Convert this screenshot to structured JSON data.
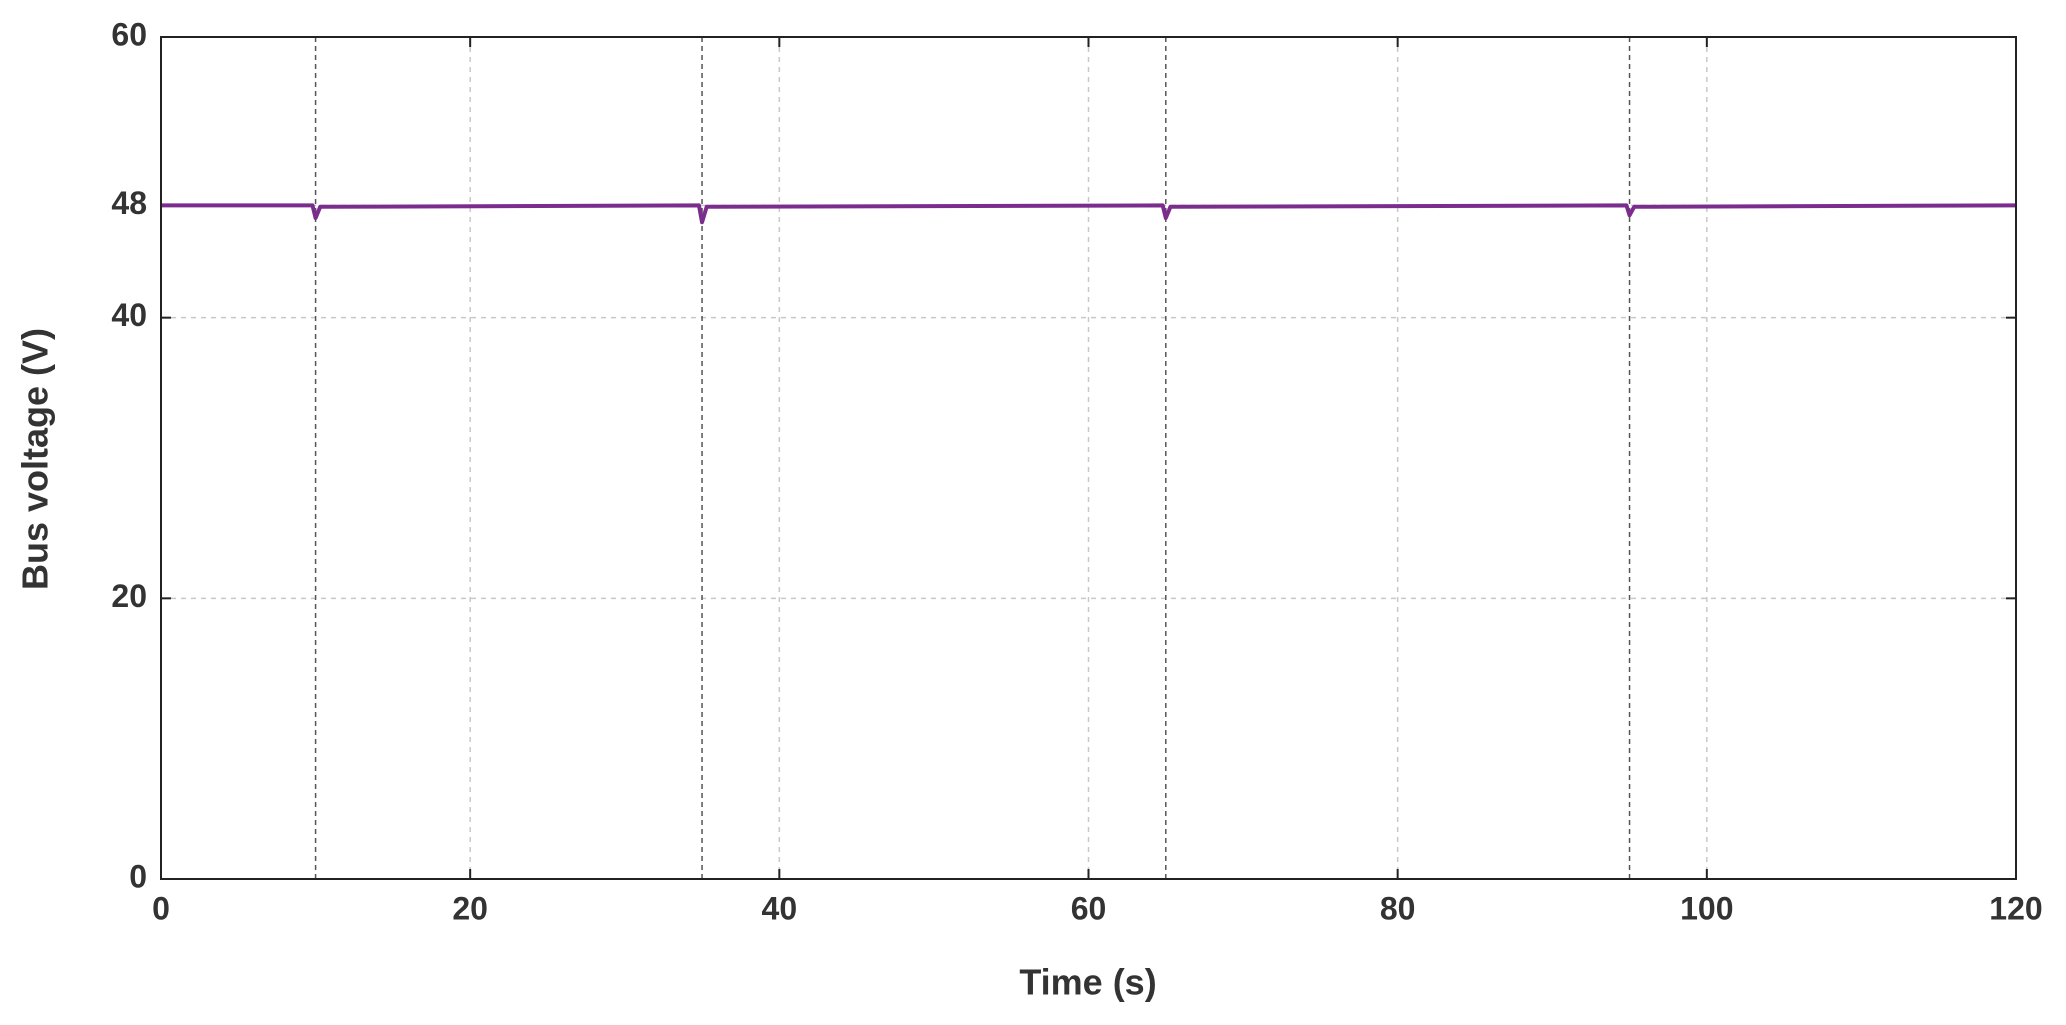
{
  "chart_data": {
    "type": "line",
    "xlabel": "Time (s)",
    "ylabel": "Bus voltage (V)",
    "x": [
      0,
      9.8,
      10,
      10.3,
      34.8,
      35,
      35.3,
      64.8,
      65,
      65.3,
      94.8,
      95,
      95.3,
      120
    ],
    "series": [
      {
        "name": "Bus voltage",
        "color": "#7b2d8e",
        "values": [
          48,
          48,
          47.1,
          47.9,
          48,
          46.8,
          47.9,
          48,
          47.1,
          47.9,
          48,
          47.3,
          47.9,
          48
        ]
      }
    ],
    "xlim": [
      0,
      120
    ],
    "xticks": [
      0,
      20,
      40,
      60,
      80,
      100,
      120
    ],
    "ylim": [
      0,
      60
    ],
    "yticks": [
      0,
      20,
      40,
      48,
      60
    ],
    "event_lines": [
      10,
      35,
      65,
      95
    ],
    "grid": true
  }
}
